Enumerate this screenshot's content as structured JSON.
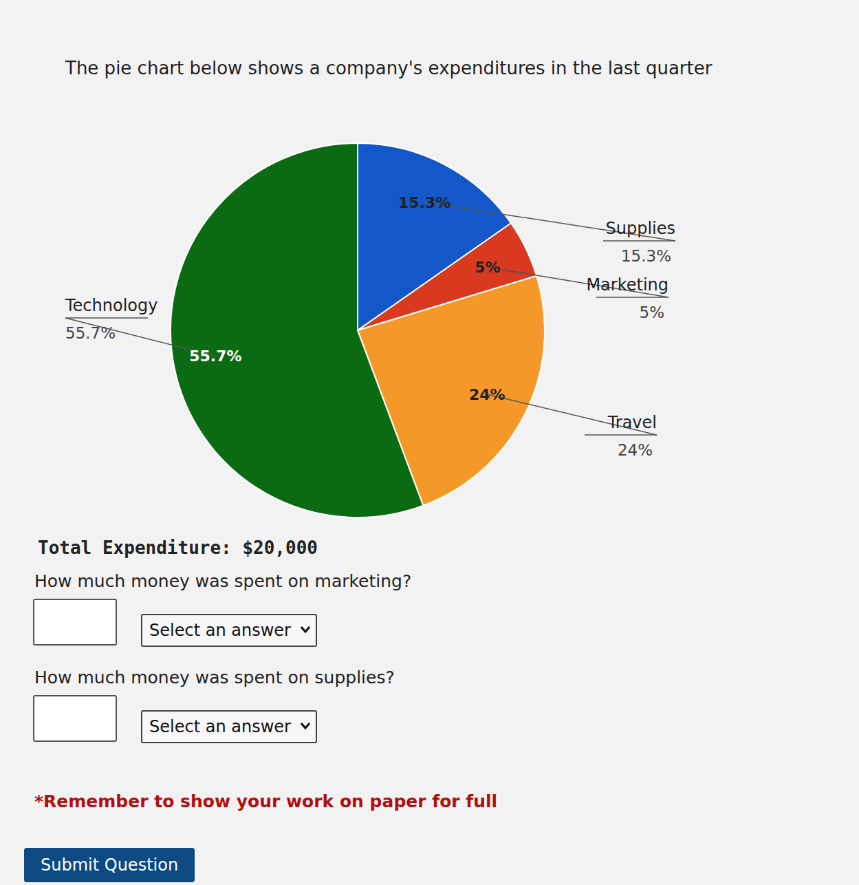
{
  "chart_data": {
    "type": "pie",
    "title": "The pie chart below shows a company's expenditures in the last quarter",
    "categories": [
      "Supplies",
      "Marketing",
      "Travel",
      "Technology"
    ],
    "values": [
      15.3,
      5,
      24,
      55.7
    ],
    "value_labels": [
      "15.3%",
      "5%",
      "24%",
      "55.7%"
    ],
    "colors": [
      "#1357c9",
      "#d93a1f",
      "#f5982a",
      "#0b6b12"
    ],
    "data_labels": true
  },
  "page": {
    "total": "Total Expenditure: $20,000",
    "questions": [
      {
        "text": "How much money was spent on marketing?",
        "select": "Select an answer"
      },
      {
        "text": "How much money was spent on supplies?",
        "select": "Select an answer"
      }
    ],
    "reminder": "*Remember to show your work on paper for full",
    "submit": "Submit Question"
  }
}
